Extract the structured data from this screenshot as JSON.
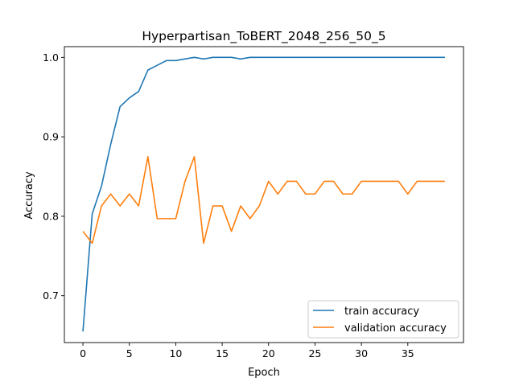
{
  "chart_data": {
    "type": "line",
    "title": "Hyperpartisan_ToBERT_2048_256_50_5",
    "xlabel": "Epoch",
    "ylabel": "Accuracy",
    "xlim": [
      -2,
      41
    ],
    "ylim": [
      0.641,
      1.0135
    ],
    "xticks": [
      0,
      5,
      10,
      15,
      20,
      25,
      30,
      35
    ],
    "yticks": [
      0.7,
      0.8,
      0.9,
      1.0
    ],
    "xtick_labels": [
      "0",
      "5",
      "10",
      "15",
      "20",
      "25",
      "30",
      "35"
    ],
    "ytick_labels": [
      "0.7",
      "0.8",
      "0.9",
      "1.0"
    ],
    "legend_position": "lower right",
    "x": [
      0,
      1,
      2,
      3,
      4,
      5,
      6,
      7,
      8,
      9,
      10,
      11,
      12,
      13,
      14,
      15,
      16,
      17,
      18,
      19,
      20,
      21,
      22,
      23,
      24,
      25,
      26,
      27,
      28,
      29,
      30,
      31,
      32,
      33,
      34,
      35,
      36,
      37,
      38,
      39
    ],
    "series": [
      {
        "name": "train accuracy",
        "color": "#1f77b4",
        "values": [
          0.655,
          0.803,
          0.838,
          0.891,
          0.938,
          0.949,
          0.957,
          0.984,
          0.99,
          0.996,
          0.996,
          0.998,
          1.0,
          0.998,
          1.0,
          1.0,
          1.0,
          0.998,
          1.0,
          1.0,
          1.0,
          1.0,
          1.0,
          1.0,
          1.0,
          1.0,
          1.0,
          1.0,
          1.0,
          1.0,
          1.0,
          1.0,
          1.0,
          1.0,
          1.0,
          1.0,
          1.0,
          1.0,
          1.0,
          1.0
        ]
      },
      {
        "name": "validation accuracy",
        "color": "#ff7f0e",
        "values": [
          0.781,
          0.766,
          0.813,
          0.828,
          0.813,
          0.828,
          0.813,
          0.875,
          0.797,
          0.797,
          0.797,
          0.844,
          0.875,
          0.766,
          0.813,
          0.813,
          0.781,
          0.813,
          0.797,
          0.813,
          0.844,
          0.828,
          0.844,
          0.844,
          0.828,
          0.828,
          0.844,
          0.844,
          0.828,
          0.828,
          0.844,
          0.844,
          0.844,
          0.844,
          0.844,
          0.828,
          0.844,
          0.844,
          0.844,
          0.844
        ]
      }
    ]
  }
}
